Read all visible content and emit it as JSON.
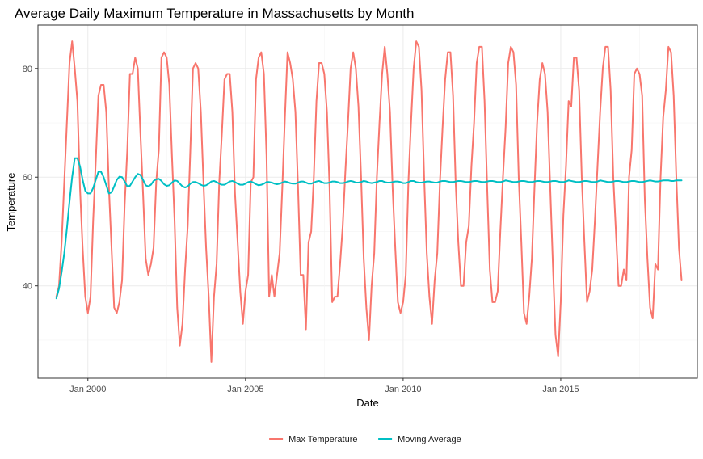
{
  "chart_data": {
    "type": "line",
    "title": "Average Daily Maximum Temperature in Massachusetts by Month",
    "xlabel": "Date",
    "ylabel": "Temperature",
    "x_range": [
      "1998-06-01",
      "2019-05-01"
    ],
    "ylim": [
      23,
      88
    ],
    "x_ticks": [
      {
        "date": "2000-01-01",
        "label": "Jan 2000"
      },
      {
        "date": "2005-01-01",
        "label": "Jan 2005"
      },
      {
        "date": "2010-01-01",
        "label": "Jan 2010"
      },
      {
        "date": "2015-01-01",
        "label": "Jan 2015"
      }
    ],
    "y_ticks": [
      40,
      60,
      80
    ],
    "grid": true,
    "legend_position": "bottom",
    "series": [
      {
        "name": "Max Temperature",
        "color": "#F8766D",
        "x_start": "1999-01",
        "x_step": "1 month",
        "values": [
          38,
          40,
          48,
          59,
          70,
          81,
          85,
          80,
          74,
          58,
          47,
          38,
          35,
          38,
          52,
          63,
          75,
          77,
          77,
          72,
          58,
          47,
          36,
          35,
          37,
          41,
          55,
          65,
          79,
          79,
          82,
          80,
          68,
          57,
          45,
          42,
          44,
          47,
          59,
          65,
          82,
          83,
          82,
          77,
          64,
          52,
          36,
          29,
          33,
          43,
          51,
          65,
          80,
          81,
          80,
          72,
          59,
          47,
          38,
          26,
          38,
          44,
          59,
          68,
          78,
          79,
          79,
          72,
          57,
          48,
          39,
          33,
          39,
          42,
          59,
          60,
          78,
          82,
          83,
          79,
          64,
          38,
          42,
          38,
          42,
          46,
          58,
          71,
          83,
          81,
          78,
          72,
          58,
          42,
          42,
          32,
          48,
          50,
          60,
          74,
          81,
          81,
          79,
          72,
          58,
          37,
          38,
          38,
          44,
          51,
          61,
          70,
          80,
          83,
          80,
          73,
          60,
          45,
          36,
          30,
          40,
          46,
          60,
          70,
          79,
          84,
          79,
          72,
          58,
          47,
          37,
          35,
          37,
          42,
          59,
          70,
          80,
          85,
          84,
          76,
          60,
          46,
          38,
          33,
          41,
          46,
          59,
          69,
          78,
          83,
          83,
          75,
          59,
          48,
          40,
          40,
          48,
          51,
          62,
          70,
          81,
          84,
          84,
          74,
          58,
          43,
          37,
          37,
          39,
          50,
          60,
          69,
          81,
          84,
          83,
          77,
          60,
          48,
          35,
          33,
          38,
          45,
          58,
          70,
          78,
          81,
          79,
          72,
          58,
          44,
          31,
          27,
          37,
          53,
          62,
          74,
          73,
          82,
          82,
          76,
          60,
          48,
          37,
          39,
          43,
          52,
          62,
          72,
          80,
          84,
          84,
          76,
          60,
          50,
          40,
          40,
          43,
          41,
          60,
          65,
          79,
          80,
          79,
          75,
          56,
          45,
          36,
          34,
          44,
          43,
          60,
          71,
          76,
          84,
          83,
          75,
          60,
          47,
          41
        ]
      },
      {
        "name": "Moving Average",
        "color": "#00BFC4",
        "x_start": "1999-01",
        "x_step": "1 month",
        "values": [
          37.7,
          39.5,
          42.5,
          46,
          50.5,
          55.5,
          60,
          63.5,
          63.5,
          62,
          59.5,
          57.5,
          57,
          57,
          58,
          59.5,
          61,
          61,
          60,
          58.5,
          57,
          57.2,
          58.3,
          59.5,
          60.1,
          60,
          59.2,
          58.3,
          58.4,
          59.2,
          60,
          60.6,
          60.4,
          59.5,
          58.5,
          58.3,
          58.6,
          59.3,
          59.6,
          59.7,
          59.3,
          58.7,
          58.4,
          58.5,
          59,
          59.4,
          59.3,
          58.8,
          58.3,
          58.1,
          58.3,
          58.8,
          59.1,
          59.1,
          58.9,
          58.6,
          58.4,
          58.5,
          58.8,
          59.2,
          59.3,
          59.1,
          58.8,
          58.6,
          58.6,
          58.9,
          59.2,
          59.3,
          59.1,
          58.8,
          58.6,
          58.6,
          58.8,
          59.1,
          59.2,
          59,
          58.7,
          58.5,
          58.6,
          58.8,
          59.1,
          59.1,
          59,
          58.8,
          58.7,
          58.8,
          59,
          59.2,
          59.1,
          58.9,
          58.8,
          58.8,
          59,
          59.2,
          59.2,
          59,
          58.8,
          58.8,
          59,
          59.2,
          59.3,
          59.1,
          58.9,
          58.9,
          59,
          59.2,
          59.2,
          59.1,
          58.9,
          58.9,
          59,
          59.2,
          59.3,
          59.2,
          59,
          59,
          59.1,
          59.3,
          59.2,
          59,
          58.9,
          59,
          59.1,
          59.3,
          59.3,
          59.1,
          59,
          59,
          59.1,
          59.2,
          59.2,
          59.1,
          58.9,
          58.9,
          59.1,
          59.3,
          59.3,
          59.1,
          59,
          59,
          59.1,
          59.2,
          59.2,
          59.1,
          59,
          59,
          59.2,
          59.3,
          59.3,
          59.2,
          59.1,
          59.1,
          59.2,
          59.3,
          59.3,
          59.2,
          59.1,
          59.1,
          59.2,
          59.3,
          59.3,
          59.2,
          59.1,
          59.1,
          59.2,
          59.3,
          59.3,
          59.2,
          59.1,
          59.1,
          59.2,
          59.4,
          59.3,
          59.2,
          59.1,
          59.1,
          59.2,
          59.3,
          59.3,
          59.2,
          59.1,
          59.1,
          59.2,
          59.3,
          59.3,
          59.2,
          59.1,
          59.1,
          59.2,
          59.3,
          59.3,
          59.2,
          59.1,
          59.1,
          59.2,
          59.4,
          59.3,
          59.2,
          59.1,
          59.1,
          59.2,
          59.3,
          59.3,
          59.2,
          59.1,
          59.1,
          59.2,
          59.4,
          59.3,
          59.2,
          59.1,
          59.1,
          59.2,
          59.3,
          59.3,
          59.2,
          59.1,
          59.1,
          59.2,
          59.3,
          59.3,
          59.2,
          59.1,
          59.1,
          59.2,
          59.3,
          59.4,
          59.3,
          59.2,
          59.2,
          59.3,
          59.4,
          59.4,
          59.4,
          59.3,
          59.3,
          59.4,
          59.4,
          59.4
        ]
      }
    ]
  }
}
